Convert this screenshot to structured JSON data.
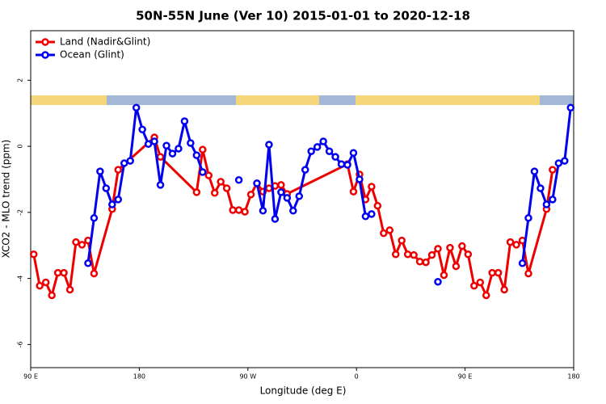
{
  "chart_data": {
    "type": "line",
    "title": "50N-55N June (Ver 10)   2015-01-01 to 2020-12-18",
    "xlabel": "Longitude (deg E)",
    "ylabel": "XCO2 - MLO trend (ppm)",
    "xlim": [
      90,
      540
    ],
    "ylim": [
      -6.7,
      3.5
    ],
    "xticks": [
      {
        "value": 90,
        "label": "90 E"
      },
      180,
      {
        "value": 270,
        "label": "90 W"
      },
      {
        "value": 360,
        "label": "0"
      },
      {
        "value": 450,
        "label": "90 E"
      },
      {
        "value": 540,
        "label": "180"
      }
    ],
    "yticks": [
      -6,
      -4,
      -2,
      0,
      2
    ],
    "legend": "top-left",
    "series": [
      {
        "name": "Land (Nadir&Glint)",
        "color": "#ee0000",
        "x": [
          92.5,
          97.5,
          102.5,
          107.5,
          112.5,
          117.5,
          122.5,
          127.5,
          132.5,
          137.5,
          142.5,
          157.5,
          162.5,
          192.5,
          197.5,
          227.5,
          232.5,
          237.5,
          242.5,
          247.5,
          252.5,
          257.5,
          262.5,
          267.5,
          272.5,
          277.5,
          282.5,
          287.5,
          292.5,
          297.5,
          302.5,
          352.5,
          357.5,
          362.5,
          367.5,
          372.5,
          377.5,
          382.5,
          387.5,
          392.5,
          397.5,
          402.5,
          407.5,
          412.5,
          417.5,
          422.5,
          427.5,
          432.5,
          437.5,
          442.5,
          447.5,
          452.5,
          457.5,
          462.5,
          467.5,
          472.5,
          477.5,
          482.5,
          487.5,
          492.5,
          497.5,
          502.5,
          517.5,
          522.5
        ],
        "values": [
          -3.27,
          -4.22,
          -4.12,
          -4.51,
          -3.83,
          -3.83,
          -4.34,
          -2.9,
          -2.98,
          -2.85,
          -3.85,
          -1.9,
          -0.71,
          0.27,
          -0.32,
          -1.39,
          -0.1,
          -0.88,
          -1.41,
          -1.07,
          -1.27,
          -1.93,
          -1.93,
          -1.98,
          -1.46,
          -1.12,
          -1.37,
          -1.27,
          -1.2,
          -1.17,
          -1.44,
          -0.54,
          -1.37,
          -0.85,
          -1.61,
          -1.22,
          -1.8,
          -2.63,
          -2.54,
          -3.27,
          -2.85,
          -3.27,
          -3.29,
          -3.49,
          -3.51,
          -3.29,
          -3.1,
          -3.9,
          -3.07,
          -3.63,
          -3.02,
          -3.27,
          -4.22,
          -4.12,
          -4.51,
          -3.83,
          -3.83,
          -4.34,
          -2.9,
          -2.98,
          -2.85,
          -3.85,
          -1.9,
          -0.71
        ]
      },
      {
        "name": "Ocean (Glint)",
        "color": "#0000ee",
        "x": [
          137.5,
          142.5,
          147.5,
          152.5,
          157.5,
          162.5,
          167.5,
          172.5,
          177.5,
          182.5,
          187.5,
          192.5,
          197.5,
          202.5,
          207.5,
          212.5,
          217.5,
          222.5,
          227.5,
          232.5,
          240,
          262.5,
          270,
          277.5,
          282.5,
          287.5,
          292.5,
          297.5,
          302.5,
          307.5,
          312.5,
          317.5,
          322.5,
          327.5,
          332.5,
          337.5,
          342.5,
          347.5,
          352.5,
          357.5,
          362.5,
          367.5,
          372.5,
          377.5,
          400,
          427.5,
          460,
          497.5,
          502.5,
          507.5,
          512.5,
          517.5,
          522.5,
          527.5,
          532.5,
          537.5
        ],
        "values": [
          -3.54,
          -2.17,
          -0.76,
          -1.27,
          -1.76,
          -1.61,
          -0.51,
          -0.44,
          1.17,
          0.51,
          0.07,
          0.15,
          -1.17,
          0.02,
          -0.22,
          -0.07,
          0.76,
          0.1,
          -0.27,
          -0.78,
          null,
          -1.02,
          null,
          -1.12,
          -1.95,
          0.05,
          -2.2,
          -1.39,
          -1.56,
          -1.95,
          -1.51,
          -0.71,
          -0.15,
          -0.02,
          0.15,
          -0.15,
          -0.32,
          -0.54,
          -0.56,
          -0.2,
          -1.0,
          -2.12,
          -2.05,
          null,
          null,
          -4.1,
          null,
          -3.54,
          -2.17,
          -0.76,
          -1.27,
          -1.76,
          -1.61,
          -0.51,
          -0.44,
          1.17
        ]
      }
    ]
  }
}
